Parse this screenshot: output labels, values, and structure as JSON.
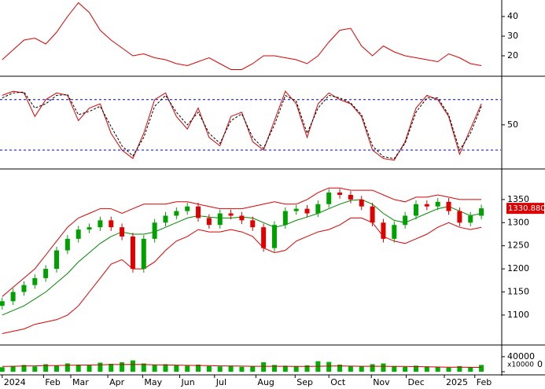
{
  "chart_data": [
    {
      "type": "line",
      "ylim": [
        10.4,
        48.4
      ],
      "yticks": [
        20,
        30,
        40
      ],
      "series": [
        {
          "color": "#dd0000",
          "values": [
            18,
            23,
            28,
            29,
            26,
            32,
            40,
            47,
            42,
            33,
            28,
            24,
            20,
            21,
            19,
            18,
            16,
            15,
            17,
            19,
            16,
            13,
            13,
            16,
            20,
            20,
            19,
            18,
            16,
            20,
            27,
            33,
            34,
            25,
            20,
            25,
            22,
            20,
            19,
            18,
            17,
            21,
            19,
            16,
            15
          ]
        }
      ]
    },
    {
      "type": "line",
      "ylim": [
        -0.6,
        105
      ],
      "yticks": [
        50
      ],
      "hlines": [
        80,
        20
      ],
      "hline_color": "#0000cc",
      "series": [
        {
          "color": "#dd0000",
          "values": [
            85,
            90,
            88,
            60,
            80,
            88,
            85,
            55,
            70,
            75,
            40,
            20,
            10,
            40,
            80,
            88,
            60,
            45,
            70,
            35,
            25,
            60,
            65,
            30,
            20,
            55,
            90,
            75,
            35,
            75,
            88,
            80,
            75,
            60,
            20,
            10,
            8,
            30,
            70,
            85,
            80,
            60,
            15,
            45,
            75
          ]
        },
        {
          "color": "#000000",
          "dash": true,
          "values": [
            82,
            88,
            89,
            70,
            75,
            85,
            86,
            62,
            66,
            72,
            48,
            25,
            13,
            35,
            72,
            85,
            65,
            50,
            65,
            40,
            28,
            55,
            63,
            35,
            22,
            50,
            85,
            78,
            40,
            70,
            85,
            82,
            76,
            62,
            25,
            12,
            10,
            28,
            65,
            82,
            82,
            62,
            20,
            40,
            72
          ]
        }
      ]
    },
    {
      "type": "candlestick",
      "ylim": [
        1037,
        1411
      ],
      "yticks": [
        1100,
        1150,
        1200,
        1250,
        1300,
        1350
      ],
      "up_color": "#00a000",
      "down_color": "#e00000",
      "open": [
        1120,
        1130,
        1150,
        1165,
        1180,
        1200,
        1240,
        1265,
        1285,
        1290,
        1305,
        1290,
        1270,
        1200,
        1265,
        1300,
        1315,
        1325,
        1335,
        1310,
        1295,
        1320,
        1315,
        1305,
        1290,
        1245,
        1295,
        1325,
        1330,
        1320,
        1340,
        1365,
        1360,
        1350,
        1335,
        1300,
        1265,
        1295,
        1315,
        1340,
        1335,
        1345,
        1325,
        1300,
        1315
      ],
      "high": [
        1138,
        1158,
        1173,
        1188,
        1208,
        1248,
        1273,
        1293,
        1298,
        1313,
        1313,
        1298,
        1278,
        1273,
        1308,
        1323,
        1333,
        1343,
        1343,
        1318,
        1328,
        1328,
        1323,
        1313,
        1298,
        1303,
        1333,
        1338,
        1338,
        1348,
        1373,
        1373,
        1368,
        1358,
        1343,
        1308,
        1303,
        1323,
        1348,
        1348,
        1353,
        1353,
        1333,
        1323,
        1339
      ],
      "low": [
        1112,
        1122,
        1142,
        1157,
        1172,
        1192,
        1232,
        1257,
        1277,
        1282,
        1282,
        1262,
        1192,
        1192,
        1257,
        1292,
        1307,
        1317,
        1302,
        1287,
        1287,
        1307,
        1297,
        1282,
        1237,
        1237,
        1287,
        1317,
        1312,
        1312,
        1332,
        1352,
        1342,
        1327,
        1292,
        1257,
        1257,
        1287,
        1307,
        1327,
        1327,
        1317,
        1292,
        1292,
        1307
      ],
      "close": [
        1130,
        1150,
        1165,
        1180,
        1200,
        1240,
        1265,
        1285,
        1290,
        1305,
        1290,
        1270,
        1200,
        1265,
        1300,
        1315,
        1325,
        1335,
        1310,
        1295,
        1320,
        1315,
        1305,
        1290,
        1245,
        1295,
        1325,
        1330,
        1320,
        1340,
        1365,
        1360,
        1350,
        1335,
        1300,
        1265,
        1295,
        1315,
        1340,
        1335,
        1345,
        1325,
        1300,
        1315,
        1330.88
      ],
      "last_price": {
        "value": 1330.88,
        "label": "1330.880"
      },
      "series": [
        {
          "color": "#008800",
          "values": [
            1100,
            1110,
            1120,
            1135,
            1150,
            1170,
            1190,
            1215,
            1235,
            1255,
            1270,
            1280,
            1275,
            1275,
            1280,
            1290,
            1300,
            1310,
            1315,
            1312,
            1310,
            1310,
            1312,
            1310,
            1300,
            1290,
            1295,
            1305,
            1312,
            1320,
            1330,
            1340,
            1348,
            1350,
            1340,
            1320,
            1305,
            1300,
            1310,
            1320,
            1330,
            1335,
            1325,
            1315,
            1320
          ]
        },
        {
          "color": "#dd0000",
          "values": [
            1140,
            1160,
            1180,
            1200,
            1230,
            1260,
            1290,
            1310,
            1320,
            1330,
            1330,
            1320,
            1330,
            1340,
            1340,
            1340,
            1345,
            1345,
            1340,
            1335,
            1330,
            1330,
            1330,
            1335,
            1340,
            1345,
            1340,
            1340,
            1350,
            1365,
            1375,
            1375,
            1370,
            1370,
            1370,
            1360,
            1350,
            1345,
            1355,
            1355,
            1360,
            1355,
            1350,
            1350,
            1350
          ]
        },
        {
          "color": "#dd0000",
          "values": [
            1060,
            1065,
            1070,
            1080,
            1085,
            1090,
            1100,
            1120,
            1150,
            1180,
            1210,
            1220,
            1200,
            1200,
            1215,
            1240,
            1260,
            1270,
            1285,
            1280,
            1280,
            1285,
            1280,
            1270,
            1245,
            1235,
            1240,
            1260,
            1270,
            1280,
            1285,
            1295,
            1310,
            1310,
            1300,
            1270,
            1260,
            1255,
            1265,
            1275,
            1290,
            1300,
            1290,
            1285,
            1290
          ]
        }
      ]
    },
    {
      "type": "bar",
      "ylim": [
        0,
        69000
      ],
      "yticks": [
        0,
        40000
      ],
      "unit_label": "x10000",
      "color": "#00b000",
      "values": [
        12000,
        15000,
        18000,
        14000,
        20000,
        16000,
        22000,
        19000,
        17000,
        24000,
        21000,
        25000,
        30000,
        22000,
        18000,
        20000,
        17000,
        16000,
        19000,
        15000,
        14000,
        16000,
        13000,
        14000,
        25000,
        18000,
        16000,
        15000,
        17000,
        28000,
        26000,
        19000,
        15000,
        14000,
        20000,
        22000,
        15000,
        13000,
        16000,
        14000,
        12000,
        11000,
        15000,
        12000,
        18000
      ],
      "series": [
        {
          "color": "#cc0000",
          "values": [
            14000,
            14500,
            15000,
            15500,
            16000,
            16500,
            17000,
            17500,
            18000,
            18500,
            19000,
            19000,
            19500,
            19000,
            18500,
            18000,
            17500,
            17000,
            16500,
            16000,
            15500,
            15000,
            14800,
            14500,
            14500,
            14500,
            14500,
            14300,
            14200,
            14500,
            15000,
            15000,
            14800,
            14500,
            14500,
            14500,
            14200,
            14000,
            13500,
            13000,
            12500,
            12000,
            12000,
            11800,
            11500
          ]
        }
      ],
      "x": [
        0,
        1,
        2,
        3,
        4,
        5,
        6,
        7,
        8,
        9,
        10,
        11,
        12,
        13,
        14,
        15,
        16,
        17,
        18,
        19,
        20,
        21,
        22,
        23,
        24,
        25,
        26,
        27,
        28,
        29,
        30,
        31,
        32,
        33,
        34,
        35,
        36,
        37,
        38,
        39,
        40,
        41,
        42,
        43,
        44
      ],
      "xlim": [
        -0.2,
        45.8
      ],
      "xticks": [
        {
          "value": 0,
          "label": "2024"
        },
        {
          "value": 3.8,
          "label": "Feb"
        },
        {
          "value": 6.3,
          "label": "Mar"
        },
        {
          "value": 9.7,
          "label": "Apr"
        },
        {
          "value": 12.9,
          "label": "May"
        },
        {
          "value": 16.3,
          "label": "Jun"
        },
        {
          "value": 19.5,
          "label": "Jul"
        },
        {
          "value": 23.3,
          "label": "Aug"
        },
        {
          "value": 26.9,
          "label": "Sep"
        },
        {
          "value": 30,
          "label": "Oct"
        },
        {
          "value": 33.9,
          "label": "Nov"
        },
        {
          "value": 37.1,
          "label": "Dec"
        },
        {
          "value": 40.6,
          "label": "2025"
        },
        {
          "value": 43.4,
          "label": "Feb"
        }
      ]
    }
  ]
}
